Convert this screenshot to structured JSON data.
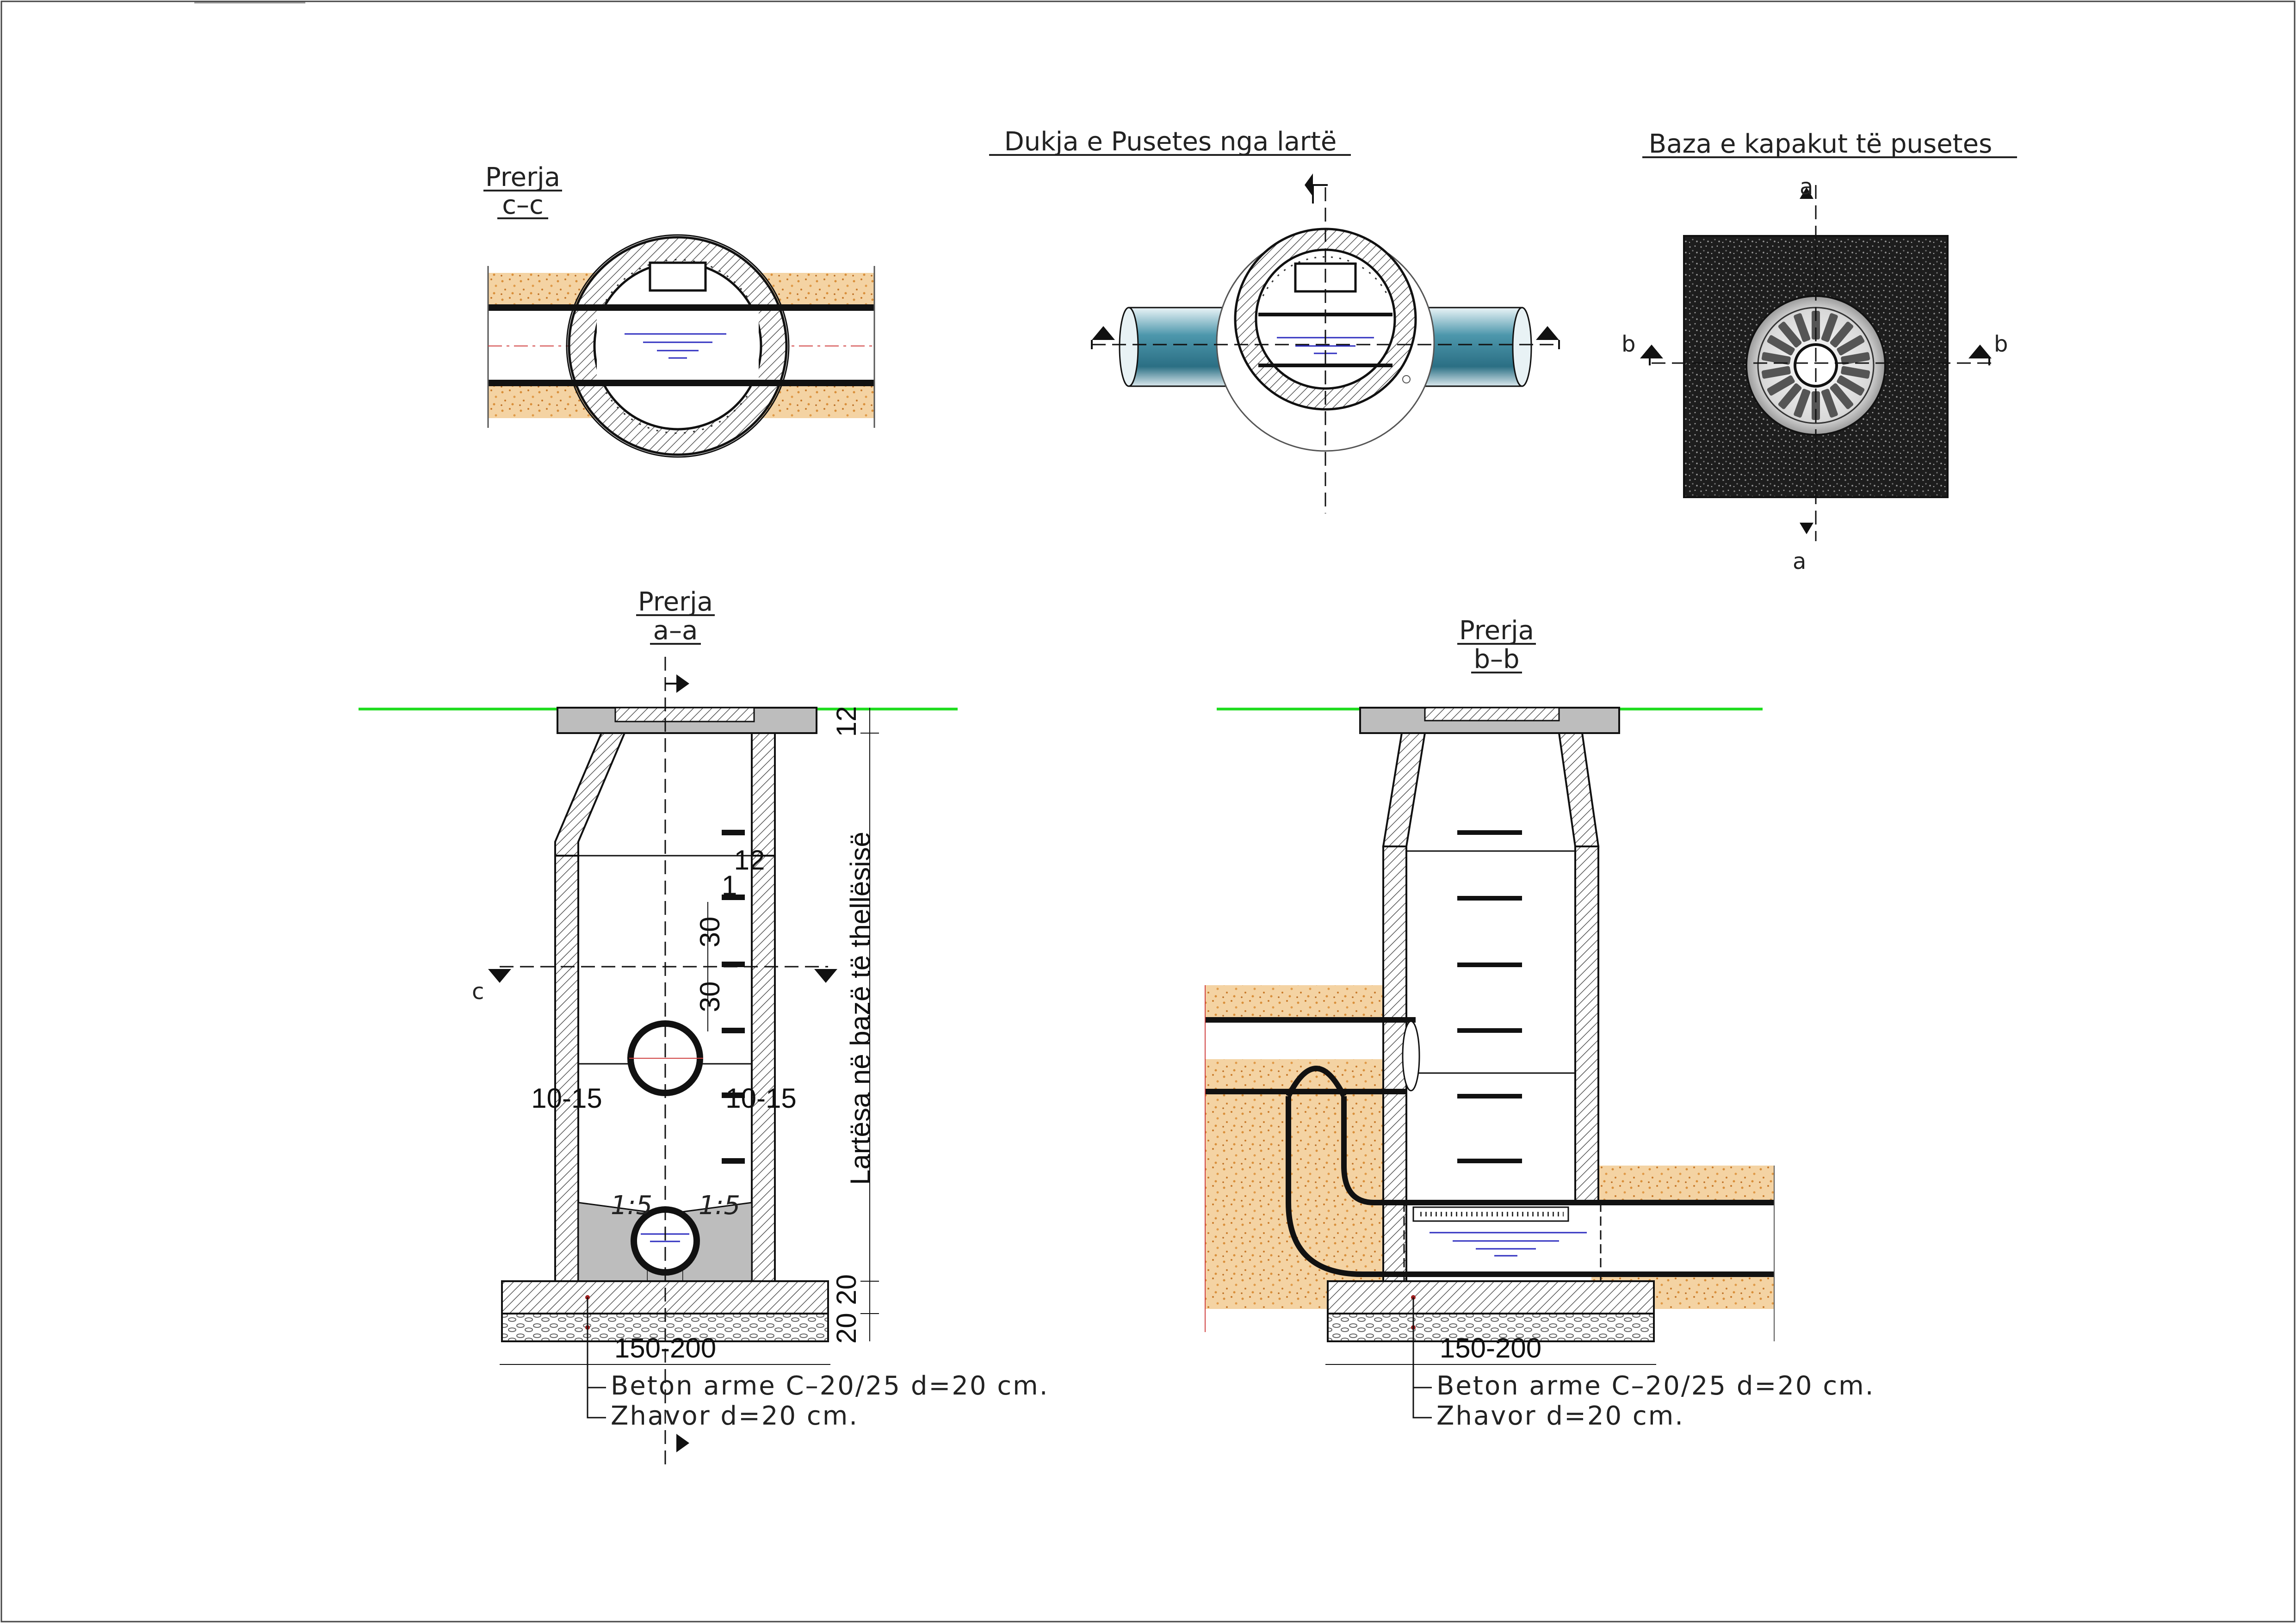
{
  "views": {
    "section_cc": {
      "title_line1": "Prerja",
      "title_line2": "c–c"
    },
    "top_view": {
      "title": "Dukja e Pusetes nga lartë"
    },
    "cover_base": {
      "title": "Baza e kapakut të pusetes"
    },
    "section_aa": {
      "title_line1": "Prerja",
      "title_line2": "a–a"
    },
    "section_bb": {
      "title_line1": "Prerja",
      "title_line2": "b–b"
    }
  },
  "section_markers": {
    "a": "a",
    "b": "b",
    "c": "c"
  },
  "dimensions": {
    "cap_thickness": "12",
    "step_offset": "12",
    "step_gap": "1",
    "step_spacing_1": "30",
    "step_spacing_2": "30",
    "wall_left": "10-15",
    "wall_right": "10-15",
    "slope_left": "1:5",
    "slope_right": "1:5",
    "base_layers": "20 20",
    "depth_label": "Lartësa në bazë të thellësisë",
    "base_width_aa": "150-200",
    "base_width_bb": "150-200"
  },
  "notes": {
    "concrete": "Beton arme C–20/25 d=20 cm.",
    "gravel": "Zhavor d=20 cm."
  },
  "colors": {
    "ground_line": "#22dd22",
    "axis_line": "#d04040",
    "water": "#3030c0",
    "soil": "#f2c890",
    "pipe": "#3f8aa0",
    "asphalt": "#1a1a1a"
  }
}
